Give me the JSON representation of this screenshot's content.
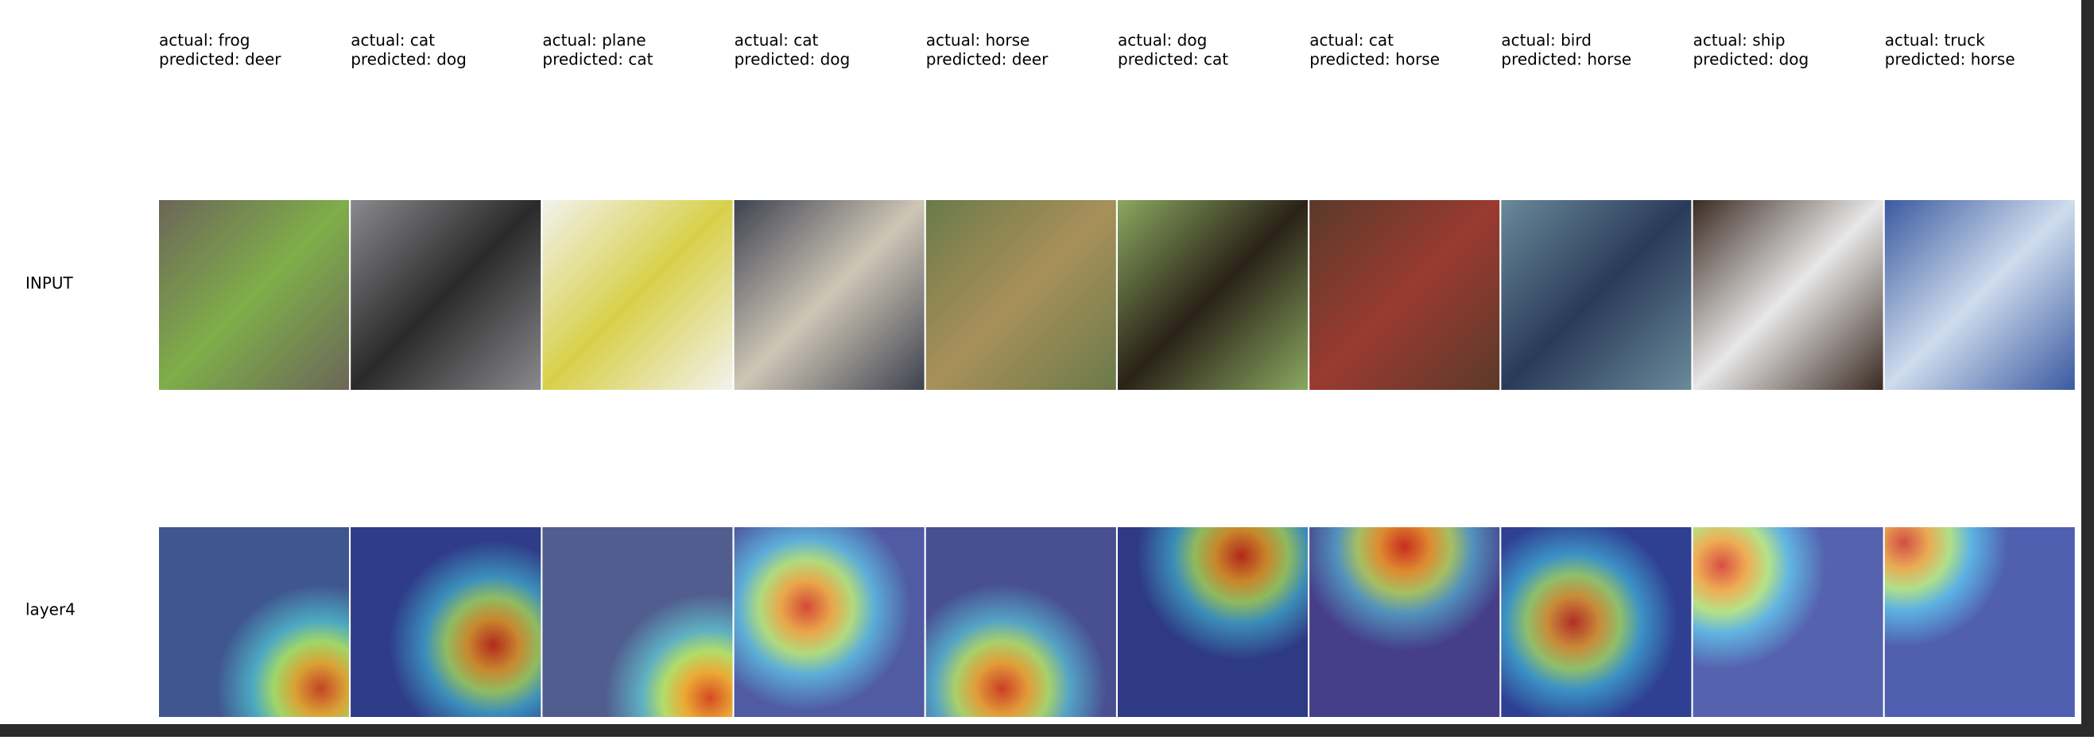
{
  "columns": [
    {
      "actual": "actual: frog",
      "predicted": "predicted: deer"
    },
    {
      "actual": "actual: cat",
      "predicted": "predicted: dog"
    },
    {
      "actual": "actual: plane",
      "predicted": "predicted: cat"
    },
    {
      "actual": "actual: cat",
      "predicted": "predicted: dog"
    },
    {
      "actual": "actual: horse",
      "predicted": "predicted: deer"
    },
    {
      "actual": "actual: dog",
      "predicted": "predicted: cat"
    },
    {
      "actual": "actual: cat",
      "predicted": "predicted: horse"
    },
    {
      "actual": "actual: bird",
      "predicted": "predicted: horse"
    },
    {
      "actual": "actual: ship",
      "predicted": "predicted: dog"
    },
    {
      "actual": "actual: truck",
      "predicted": "predicted: horse"
    }
  ],
  "rows": [
    "INPUT",
    "layer4"
  ]
}
